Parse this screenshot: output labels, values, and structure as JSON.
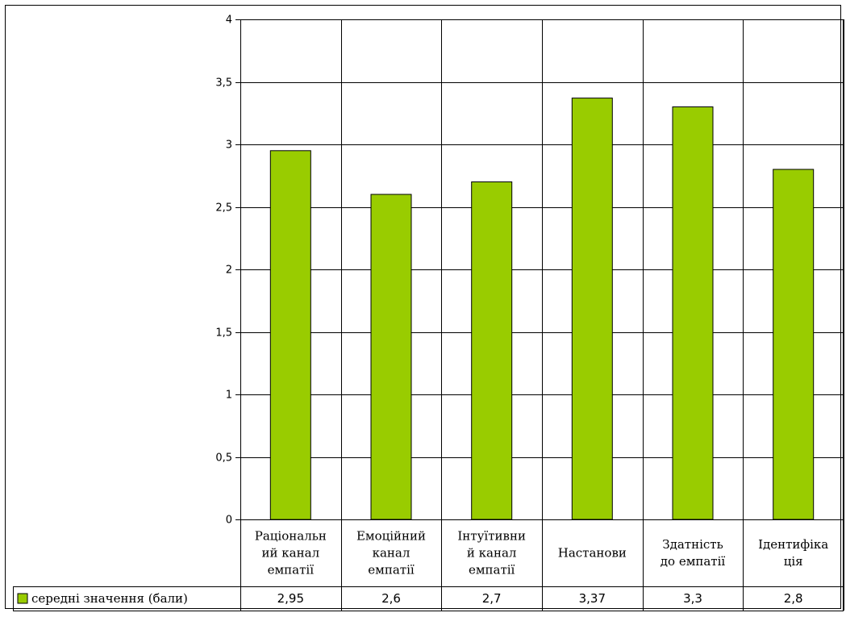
{
  "chart_data": {
    "type": "bar",
    "categories": [
      [
        "Раціональн",
        "ий канал",
        "емпатії"
      ],
      [
        "Емоційний",
        "канал",
        "емпатії"
      ],
      [
        "Інтуїтивни",
        "й канал",
        "емпатії"
      ],
      [
        "Настанови"
      ],
      [
        "Здатність",
        "до емпатії"
      ],
      [
        "Ідентифіка",
        "ція"
      ]
    ],
    "series": [
      {
        "name": "середні значення (бали)",
        "values": [
          2.95,
          2.6,
          2.7,
          3.37,
          3.3,
          2.8
        ],
        "value_labels": [
          "2,95",
          "2,6",
          "2,7",
          "3,37",
          "3,3",
          "2,8"
        ],
        "color": "#99cc00"
      }
    ],
    "ylim": [
      0,
      4
    ],
    "yticks": [
      0,
      0.5,
      1,
      1.5,
      2,
      2.5,
      3,
      3.5,
      4
    ],
    "ytick_labels": [
      "0",
      "0,5",
      "1",
      "1,5",
      "2",
      "2,5",
      "3",
      "3,5",
      "4"
    ],
    "grid": true,
    "data_table": true,
    "legend_position": "data-table-left",
    "title": "",
    "xlabel": "",
    "ylabel": ""
  }
}
